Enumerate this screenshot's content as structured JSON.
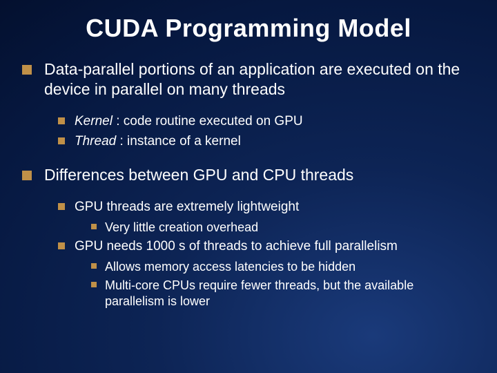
{
  "title": "CUDA Programming Model",
  "colors": {
    "bullet_marker": "#c09048",
    "text": "#ffffff",
    "background_gradient_inner": "#1a3a7a",
    "background_gradient_outer": "#030d28"
  },
  "typography": {
    "title_fontsize": 36,
    "level1_fontsize": 23,
    "level2_fontsize": 19,
    "level3_fontsize": 18,
    "font_family": "Arial"
  },
  "bullets": {
    "item1": "Data-parallel portions of an application are executed on the device in parallel on many threads",
    "item1_sub1_term": "Kernel",
    "item1_sub1_rest": " : code routine executed on GPU",
    "item1_sub2_term": "Thread",
    "item1_sub2_rest": " : instance of a kernel",
    "item2": "Differences between GPU and CPU threads",
    "item2_sub1": "GPU threads are extremely lightweight",
    "item2_sub1_sub1": "Very little creation overhead",
    "item2_sub2": "GPU needs 1000 s of threads to achieve full parallelism",
    "item2_sub2_sub1": "Allows memory access latencies to be hidden",
    "item2_sub2_sub2": "Multi-core CPUs require fewer threads, but the available parallelism is lower"
  }
}
